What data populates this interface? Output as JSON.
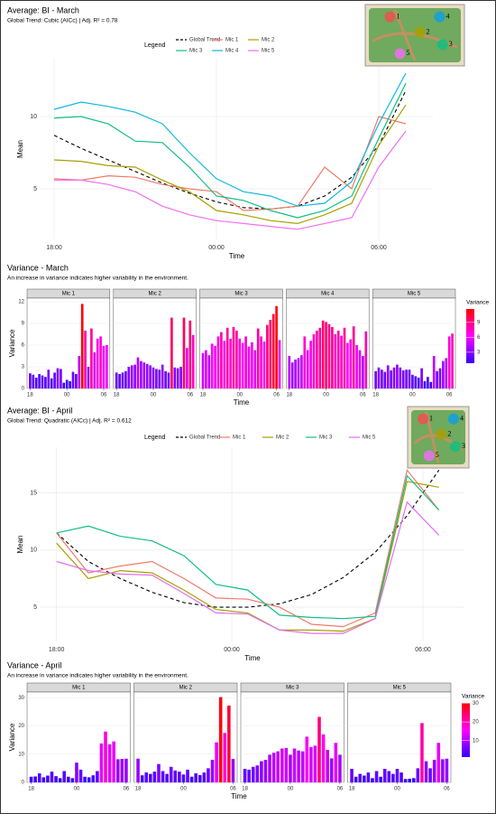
{
  "chart_data": [
    {
      "type": "line",
      "title": "Average: BI - March",
      "subtitle": "Global Trend: Cubic (AICc) | Adj. R² = 0.78",
      "legend_title": "Legend",
      "xlabel": "Time",
      "ylabel": "Mean",
      "map_markers": [
        "1",
        "2",
        "3",
        "4",
        "5"
      ],
      "x": [
        0,
        1,
        2,
        3,
        4,
        5,
        6,
        7,
        8,
        9,
        10,
        11,
        12,
        13
      ],
      "xlim": [
        -0.5,
        14
      ],
      "xticks": [
        {
          "value": 0,
          "label": "18:00"
        },
        {
          "value": 6,
          "label": "00:00"
        },
        {
          "value": 12,
          "label": "06:00"
        }
      ],
      "ylim": [
        1.5,
        14
      ],
      "yticks": [
        5,
        10
      ],
      "grid": true,
      "series": [
        {
          "name": "Global Trend",
          "color": "#000000",
          "dash": true,
          "values": [
            8.7,
            7.8,
            7.0,
            6.2,
            5.4,
            4.7,
            4.1,
            3.7,
            3.6,
            3.8,
            4.5,
            5.8,
            8.0,
            11.8
          ]
        },
        {
          "name": "Mic 1",
          "color": "#f07b6a",
          "values": [
            5.7,
            5.6,
            5.9,
            5.8,
            5.3,
            5.0,
            4.8,
            3.5,
            3.6,
            3.8,
            6.5,
            5.0,
            10.0,
            9.5
          ]
        },
        {
          "name": "Mic 2",
          "color": "#a8a000",
          "values": [
            7.0,
            6.9,
            6.6,
            6.5,
            5.6,
            4.8,
            3.5,
            3.2,
            2.8,
            2.6,
            3.2,
            4.0,
            8.0,
            10.8
          ]
        },
        {
          "name": "Mic 3",
          "color": "#10c080",
          "values": [
            9.9,
            10.0,
            9.5,
            8.3,
            8.2,
            6.5,
            4.5,
            4.2,
            3.5,
            3.0,
            3.5,
            4.5,
            8.5,
            12.3
          ]
        },
        {
          "name": "Mic 4",
          "color": "#10b8e0",
          "values": [
            10.5,
            11.0,
            10.7,
            10.3,
            9.5,
            7.5,
            5.7,
            4.8,
            4.5,
            3.8,
            4.0,
            5.5,
            9.5,
            13.0
          ]
        },
        {
          "name": "Mic 5",
          "color": "#f070f0",
          "values": [
            5.6,
            5.6,
            5.3,
            4.8,
            3.8,
            3.2,
            2.8,
            2.6,
            2.4,
            2.2,
            2.6,
            3.0,
            6.5,
            9.0
          ]
        }
      ]
    },
    {
      "type": "facet_bar",
      "title": "Variance - March",
      "subtitle": "An increase in variance indicates higher variability in the environment.",
      "xlabel": "Time",
      "ylabel": "Variance",
      "x": [
        0,
        0.5,
        1,
        1.5,
        2,
        2.5,
        3,
        3.5,
        4,
        4.5,
        5,
        5.5,
        6,
        6.5,
        7,
        7.5,
        8,
        8.5,
        9,
        9.5,
        10,
        10.5,
        11,
        11.5,
        12,
        12.5
      ],
      "xlim": [
        -0.5,
        13
      ],
      "xticks": [
        {
          "value": 0,
          "label": "18"
        },
        {
          "value": 6,
          "label": "00"
        },
        {
          "value": 12,
          "label": "06"
        }
      ],
      "ylim": [
        0,
        12.5
      ],
      "yticks": [
        0,
        3,
        6,
        9,
        12
      ],
      "grid": true,
      "colorbar": {
        "title": "Variance",
        "colors": [
          "#3300ff",
          "#ff00ff",
          "#ff0000"
        ],
        "lim": [
          0.8,
          11.7
        ],
        "ticks": [
          3,
          6,
          9
        ]
      },
      "facets": [
        {
          "name": "Mic 1",
          "values": [
            2.1,
            1.9,
            1.5,
            2.0,
            1.8,
            1.6,
            2.6,
            1.4,
            2.2,
            2.8,
            2.7,
            0.8,
            1.2,
            1.0,
            2.3,
            2.0,
            4.5,
            11.7,
            8.0,
            3.0,
            8.3,
            5.0,
            6.9,
            7.2,
            5.9,
            6.0
          ]
        },
        {
          "name": "Mic 2",
          "values": [
            2.2,
            2.0,
            2.2,
            2.4,
            3.0,
            3.2,
            3.3,
            4.3,
            3.8,
            3.6,
            3.4,
            3.2,
            2.9,
            2.7,
            2.6,
            3.3,
            2.4,
            2.2,
            9.8,
            2.9,
            2.8,
            3.0,
            9.8,
            5.6,
            9.4,
            7.4
          ]
        },
        {
          "name": "Mic 3",
          "values": [
            4.9,
            5.3,
            4.6,
            6.2,
            5.9,
            7.2,
            7.8,
            6.6,
            8.4,
            6.9,
            8.5,
            8.0,
            6.9,
            6.3,
            7.2,
            5.8,
            6.4,
            5.3,
            8.3,
            7.2,
            6.5,
            8.8,
            9.5,
            10.3,
            11.4,
            6.7
          ]
        },
        {
          "name": "Mic 4",
          "values": [
            4.5,
            3.6,
            4.0,
            4.2,
            4.6,
            7.2,
            5.3,
            6.6,
            7.5,
            8.0,
            8.4,
            9.4,
            9.2,
            8.9,
            8.5,
            7.5,
            8.0,
            7.3,
            8.4,
            6.3,
            6.8,
            8.6,
            6.0,
            5.3,
            4.5,
            7.9
          ]
        },
        {
          "name": "Mic 5",
          "values": [
            2.4,
            2.9,
            2.6,
            2.3,
            3.2,
            2.5,
            2.9,
            3.3,
            2.9,
            2.5,
            2.6,
            2.6,
            1.9,
            1.7,
            1.5,
            2.8,
            1.0,
            1.6,
            0.9,
            4.5,
            2.4,
            2.8,
            3.8,
            4.2,
            7.2,
            7.6
          ]
        }
      ]
    },
    {
      "type": "line",
      "title": "Average: BI - April",
      "subtitle": "Global Trend: Quadratic (AICc) | Adj. R² = 0.612",
      "legend_title": "Legend",
      "xlabel": "Time",
      "ylabel": "Mean",
      "map_markers": [
        "1",
        "2",
        "3",
        "4",
        "5"
      ],
      "x": [
        0,
        1,
        2,
        3,
        4,
        5,
        6,
        7,
        8,
        9,
        10,
        11,
        12
      ],
      "xlim": [
        -0.5,
        12.8
      ],
      "xticks": [
        {
          "value": 0,
          "label": "18:00"
        },
        {
          "value": 5.5,
          "label": "00:00"
        },
        {
          "value": 11.5,
          "label": "06:00"
        }
      ],
      "ylim": [
        2,
        19
      ],
      "yticks": [
        5,
        10,
        15
      ],
      "grid": true,
      "series": [
        {
          "name": "Global Trend",
          "color": "#000000",
          "dash": true,
          "values": [
            11.5,
            9.0,
            7.5,
            6.3,
            5.4,
            5.0,
            5.0,
            5.3,
            6.1,
            7.6,
            9.8,
            13.0,
            17.0
          ]
        },
        {
          "name": "Mic 1",
          "color": "#f07b6a",
          "values": [
            11.5,
            8.0,
            8.6,
            9.0,
            7.5,
            5.8,
            5.7,
            5.0,
            3.5,
            3.3,
            4.5,
            17.0,
            13.5
          ]
        },
        {
          "name": "Mic 2",
          "color": "#a8a000",
          "values": [
            10.6,
            7.5,
            8.2,
            8.0,
            6.5,
            4.8,
            4.5,
            3.0,
            3.0,
            2.9,
            4.0,
            16.0,
            15.5
          ]
        },
        {
          "name": "Mic 3",
          "color": "#10c080",
          "values": [
            11.5,
            12.1,
            11.2,
            10.8,
            9.5,
            7.0,
            6.5,
            4.3,
            4.1,
            4.0,
            4.2,
            16.5,
            13.5
          ]
        },
        {
          "name": "Mic 5",
          "color": "#e070f0",
          "values": [
            9.0,
            8.2,
            7.9,
            7.8,
            6.2,
            4.5,
            4.4,
            3.0,
            2.7,
            2.7,
            4.0,
            14.2,
            11.3
          ]
        }
      ]
    },
    {
      "type": "facet_bar",
      "title": "Variance - April",
      "subtitle": "An increase in variance indicates higher variability in the environment.",
      "xlabel": "Time",
      "ylabel": "Variance",
      "x": [
        0,
        0.5,
        1,
        1.5,
        2,
        2.5,
        3,
        3.5,
        4,
        4.5,
        5,
        5.5,
        6,
        6.5,
        7,
        7.5,
        8,
        8.5,
        9,
        9.5,
        10,
        10.5,
        11,
        11.5
      ],
      "xlim": [
        -0.5,
        12
      ],
      "xticks": [
        {
          "value": 0,
          "label": "18"
        },
        {
          "value": 5.5,
          "label": "00"
        },
        {
          "value": 11.5,
          "label": "06"
        }
      ],
      "ylim": [
        0,
        32
      ],
      "yticks": [
        0,
        10,
        20,
        30
      ],
      "grid": true,
      "colorbar": {
        "title": "Variance",
        "colors": [
          "#3300ff",
          "#ff00ff",
          "#ff0000"
        ],
        "lim": [
          1.2,
          30.2
        ],
        "ticks": [
          10,
          20,
          30
        ]
      },
      "facets": [
        {
          "name": "Mic 1",
          "values": [
            2.0,
            2.1,
            3.2,
            1.8,
            2.4,
            3.8,
            2.2,
            1.5,
            4.0,
            2.0,
            1.5,
            7.0,
            4.5,
            2.0,
            1.8,
            2.5,
            4.0,
            13.8,
            18.0,
            13.5,
            14.5,
            8.2,
            8.3,
            8.4
          ]
        },
        {
          "name": "Mic 2",
          "values": [
            8.4,
            2.5,
            3.5,
            3.0,
            3.8,
            6.5,
            4.0,
            3.0,
            5.5,
            4.2,
            3.8,
            2.8,
            4.5,
            2.0,
            3.2,
            2.6,
            3.5,
            5.0,
            8.0,
            14.2,
            30.2,
            17.5,
            27.2,
            8.3
          ]
        },
        {
          "name": "Mic 3",
          "values": [
            4.8,
            4.5,
            5.5,
            6.0,
            7.5,
            8.0,
            9.8,
            10.5,
            11.0,
            12.0,
            12.2,
            9.8,
            12.0,
            11.3,
            11.0,
            16.2,
            12.5,
            13.0,
            23.2,
            17.0,
            11.5,
            8.5,
            14.0,
            9.8
          ]
        },
        {
          "name": "Mic 5",
          "values": [
            4.8,
            2.0,
            3.0,
            2.4,
            3.5,
            1.5,
            4.0,
            2.0,
            4.8,
            4.0,
            3.0,
            4.8,
            3.5,
            1.2,
            1.3,
            1.5,
            5.0,
            21.0,
            7.5,
            5.0,
            8.0,
            14.0,
            8.2,
            8.4
          ]
        }
      ]
    }
  ]
}
